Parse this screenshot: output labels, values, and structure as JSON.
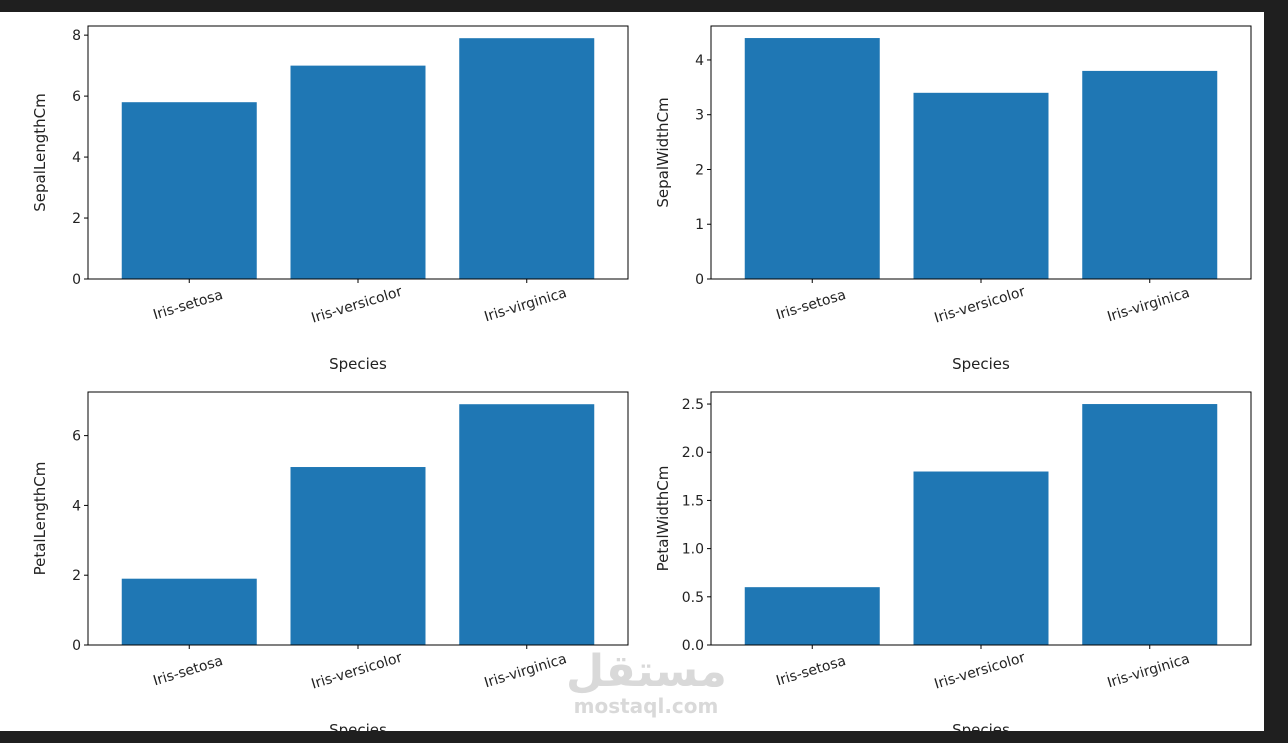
{
  "chart_data": [
    {
      "type": "bar",
      "categories": [
        "Iris-setosa",
        "Iris-versicolor",
        "Iris-virginica"
      ],
      "values": [
        5.8,
        7.0,
        7.9
      ],
      "xlabel": "Species",
      "ylabel": "SepalLengthCm",
      "ylim": [
        0,
        8.3
      ],
      "yticks": [
        0,
        2,
        4,
        6,
        8
      ],
      "ytick_labels": [
        "0",
        "2",
        "4",
        "6",
        "8"
      ],
      "grid": false
    },
    {
      "type": "bar",
      "categories": [
        "Iris-setosa",
        "Iris-versicolor",
        "Iris-virginica"
      ],
      "values": [
        4.4,
        3.4,
        3.8
      ],
      "xlabel": "Species",
      "ylabel": "SepalWidthCm",
      "ylim": [
        0,
        4.62
      ],
      "yticks": [
        0,
        1,
        2,
        3,
        4
      ],
      "ytick_labels": [
        "0",
        "1",
        "2",
        "3",
        "4"
      ],
      "grid": false
    },
    {
      "type": "bar",
      "categories": [
        "Iris-setosa",
        "Iris-versicolor",
        "Iris-virginica"
      ],
      "values": [
        1.9,
        5.1,
        6.9
      ],
      "xlabel": "Species",
      "ylabel": "PetalLengthCm",
      "ylim": [
        0,
        7.25
      ],
      "yticks": [
        0,
        2,
        4,
        6
      ],
      "ytick_labels": [
        "0",
        "2",
        "4",
        "6"
      ],
      "grid": false
    },
    {
      "type": "bar",
      "categories": [
        "Iris-setosa",
        "Iris-versicolor",
        "Iris-virginica"
      ],
      "values": [
        0.6,
        1.8,
        2.5
      ],
      "xlabel": "Species",
      "ylabel": "PetalWidthCm",
      "ylim": [
        0,
        2.625
      ],
      "yticks": [
        0,
        0.5,
        1.0,
        1.5,
        2.0,
        2.5
      ],
      "ytick_labels": [
        "0.0",
        "0.5",
        "1.0",
        "1.5",
        "2.0",
        "2.5"
      ],
      "grid": false
    }
  ],
  "colors": {
    "bar": "#1f77b4",
    "axes": "#000000",
    "background": "#ffffff",
    "editor_background": "#1f1f1f"
  },
  "watermark": {
    "logo": "مستقل",
    "text": "mostaql.com"
  }
}
